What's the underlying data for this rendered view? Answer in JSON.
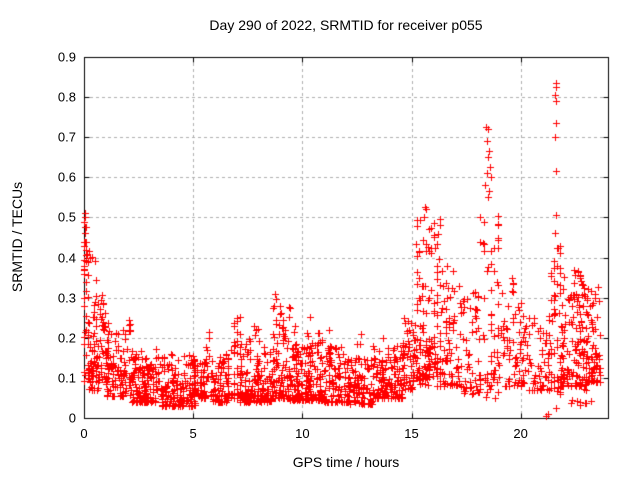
{
  "window": {
    "background": "#ffffff"
  },
  "chart_data": {
    "type": "scatter",
    "title": "Day 290 of 2022, SRMTID for receiver p055",
    "xlabel": "GPS time / hours",
    "ylabel": "SRMTID / TECUs",
    "xlim": [
      0,
      24
    ],
    "ylim": [
      0,
      0.9
    ],
    "xtick_values": [
      0,
      5,
      10,
      15,
      20
    ],
    "xtick_labels": [
      "0",
      "5",
      "10",
      "15",
      "20"
    ],
    "ytick_values": [
      0,
      0.1,
      0.2,
      0.3,
      0.4,
      0.5,
      0.6,
      0.7,
      0.8,
      0.9
    ],
    "ytick_labels": [
      "0",
      "0.1",
      "0.2",
      "0.3",
      "0.4",
      "0.5",
      "0.6",
      "0.7",
      "0.8",
      "0.9"
    ],
    "grid": true,
    "legend": "none",
    "marker": {
      "shape": "plus",
      "color": "#ff0000",
      "size": 7
    },
    "axis_color": "#000000",
    "grid_color": "#b0b0b0",
    "text_color": "#000000",
    "seed": 290,
    "clusters": [
      {
        "x0": 0.0,
        "x1": 0.18,
        "y0": 0.08,
        "y1": 0.51,
        "n": 40,
        "k": 1.0,
        "cols": 3
      },
      {
        "x0": 0.15,
        "x1": 0.55,
        "y0": 0.1,
        "y1": 0.42,
        "n": 30,
        "k": 1.3
      },
      {
        "x0": 0.2,
        "x1": 0.7,
        "y0": 0.07,
        "y1": 0.18,
        "n": 35,
        "k": 1.5
      },
      {
        "x0": 0.6,
        "x1": 1.1,
        "y0": 0.09,
        "y1": 0.31,
        "n": 45,
        "k": 1.6
      },
      {
        "x0": 1.0,
        "x1": 1.9,
        "y0": 0.055,
        "y1": 0.22,
        "n": 85,
        "k": 2.2
      },
      {
        "x0": 1.85,
        "x1": 2.15,
        "y0": 0.07,
        "y1": 0.25,
        "n": 18,
        "k": 1.4
      },
      {
        "x0": 2.1,
        "x1": 3.3,
        "y0": 0.04,
        "y1": 0.17,
        "n": 130,
        "k": 2.0
      },
      {
        "x0": 3.3,
        "x1": 3.55,
        "y0": 0.05,
        "y1": 0.21,
        "n": 12,
        "k": 1.3
      },
      {
        "x0": 3.5,
        "x1": 5.1,
        "y0": 0.03,
        "y1": 0.16,
        "n": 150,
        "k": 2.0
      },
      {
        "x0": 5.0,
        "x1": 5.6,
        "y0": 0.05,
        "y1": 0.15,
        "n": 55,
        "k": 2.0
      },
      {
        "x0": 5.6,
        "x1": 5.8,
        "y0": 0.07,
        "y1": 0.22,
        "n": 10,
        "k": 1.2
      },
      {
        "x0": 5.8,
        "x1": 6.6,
        "y0": 0.04,
        "y1": 0.16,
        "n": 70,
        "k": 2.0
      },
      {
        "x0": 6.6,
        "x1": 7.15,
        "y0": 0.05,
        "y1": 0.27,
        "n": 55,
        "k": 2.0,
        "cols": 5
      },
      {
        "x0": 7.1,
        "x1": 8.6,
        "y0": 0.04,
        "y1": 0.2,
        "n": 140,
        "k": 2.2
      },
      {
        "x0": 7.8,
        "x1": 8.0,
        "y0": 0.09,
        "y1": 0.235,
        "n": 10,
        "k": 1.2
      },
      {
        "x0": 8.6,
        "x1": 9.45,
        "y0": 0.05,
        "y1": 0.285,
        "n": 95,
        "k": 2.0
      },
      {
        "x0": 8.7,
        "x1": 8.8,
        "y0": 0.12,
        "y1": 0.31,
        "n": 6,
        "k": 1.0
      },
      {
        "x0": 9.4,
        "x1": 11.0,
        "y0": 0.045,
        "y1": 0.2,
        "n": 150,
        "k": 2.2
      },
      {
        "x0": 9.6,
        "x1": 9.8,
        "y0": 0.09,
        "y1": 0.26,
        "n": 10,
        "k": 1.2
      },
      {
        "x0": 10.2,
        "x1": 10.45,
        "y0": 0.09,
        "y1": 0.26,
        "n": 12,
        "k": 1.2
      },
      {
        "x0": 10.7,
        "x1": 10.9,
        "y0": 0.08,
        "y1": 0.225,
        "n": 8,
        "k": 1.2
      },
      {
        "x0": 11.0,
        "x1": 12.15,
        "y0": 0.04,
        "y1": 0.185,
        "n": 100,
        "k": 2.2
      },
      {
        "x0": 11.15,
        "x1": 11.35,
        "y0": 0.08,
        "y1": 0.22,
        "n": 8,
        "k": 1.2
      },
      {
        "x0": 12.15,
        "x1": 13.2,
        "y0": 0.035,
        "y1": 0.155,
        "n": 85,
        "k": 2.0
      },
      {
        "x0": 12.5,
        "x1": 12.7,
        "y0": 0.07,
        "y1": 0.23,
        "n": 10,
        "k": 1.3
      },
      {
        "x0": 13.2,
        "x1": 14.6,
        "y0": 0.05,
        "y1": 0.185,
        "n": 115,
        "k": 2.2
      },
      {
        "x0": 13.55,
        "x1": 13.7,
        "y0": 0.08,
        "y1": 0.23,
        "n": 8,
        "k": 1.2
      },
      {
        "x0": 14.2,
        "x1": 14.65,
        "y0": 0.08,
        "y1": 0.22,
        "n": 18,
        "k": 1.5
      },
      {
        "x0": 14.6,
        "x1": 15.25,
        "y0": 0.07,
        "y1": 0.25,
        "n": 55,
        "k": 1.8
      },
      {
        "x0": 15.25,
        "x1": 16.3,
        "y0": 0.1,
        "y1": 0.5,
        "n": 100,
        "k": 1.7,
        "cols": 9
      },
      {
        "x0": 15.3,
        "x1": 16.2,
        "y0": 0.08,
        "y1": 0.2,
        "n": 40,
        "k": 1.5
      },
      {
        "x0": 16.3,
        "x1": 17.3,
        "y0": 0.08,
        "y1": 0.38,
        "n": 75,
        "k": 1.9
      },
      {
        "x0": 17.3,
        "x1": 18.15,
        "y0": 0.06,
        "y1": 0.34,
        "n": 48,
        "k": 1.8
      },
      {
        "x0": 18.15,
        "x1": 18.95,
        "y0": 0.06,
        "y1": 0.52,
        "n": 50,
        "k": 1.15,
        "cols": 6
      },
      {
        "x0": 18.2,
        "x1": 19.0,
        "y0": 0.05,
        "y1": 0.12,
        "n": 12,
        "k": 1.5
      },
      {
        "x0": 19.0,
        "x1": 20.2,
        "y0": 0.08,
        "y1": 0.35,
        "n": 70,
        "k": 1.9
      },
      {
        "x0": 20.2,
        "x1": 21.35,
        "y0": 0.07,
        "y1": 0.26,
        "n": 60,
        "k": 2.0
      },
      {
        "x0": 21.4,
        "x1": 21.8,
        "y0": 0.06,
        "y1": 0.46,
        "n": 50,
        "k": 1.25,
        "cols": 4
      },
      {
        "x0": 21.8,
        "x1": 23.0,
        "y0": 0.08,
        "y1": 0.37,
        "n": 135,
        "k": 1.9
      },
      {
        "x0": 23.0,
        "x1": 23.65,
        "y0": 0.09,
        "y1": 0.33,
        "n": 70,
        "k": 1.8
      },
      {
        "x0": 22.2,
        "x1": 23.3,
        "y0": 0.03,
        "y1": 0.075,
        "n": 10,
        "k": 1.0
      }
    ],
    "notable_points": [
      [
        0.03,
        0.51
      ],
      [
        0.05,
        0.5
      ],
      [
        0.04,
        0.475
      ],
      [
        0.06,
        0.46
      ],
      [
        0.03,
        0.44
      ],
      [
        0.08,
        0.42
      ],
      [
        8.75,
        0.31
      ],
      [
        15.6,
        0.525
      ],
      [
        15.66,
        0.52
      ],
      [
        15.55,
        0.5
      ],
      [
        15.8,
        0.47
      ],
      [
        16.05,
        0.455
      ],
      [
        18.42,
        0.725
      ],
      [
        18.5,
        0.72
      ],
      [
        18.47,
        0.69
      ],
      [
        18.55,
        0.665
      ],
      [
        18.5,
        0.65
      ],
      [
        18.6,
        0.625
      ],
      [
        18.44,
        0.61
      ],
      [
        18.62,
        0.6
      ],
      [
        18.38,
        0.58
      ],
      [
        18.56,
        0.565
      ],
      [
        18.52,
        0.55
      ],
      [
        21.6,
        0.835
      ],
      [
        21.63,
        0.825
      ],
      [
        21.57,
        0.805
      ],
      [
        21.62,
        0.79
      ],
      [
        21.6,
        0.735
      ],
      [
        21.56,
        0.7
      ],
      [
        21.64,
        0.615
      ],
      [
        21.6,
        0.505
      ],
      [
        21.58,
        0.46
      ],
      [
        21.18,
        0.005
      ],
      [
        21.23,
        0.01
      ],
      [
        21.6,
        0.025
      ]
    ]
  }
}
